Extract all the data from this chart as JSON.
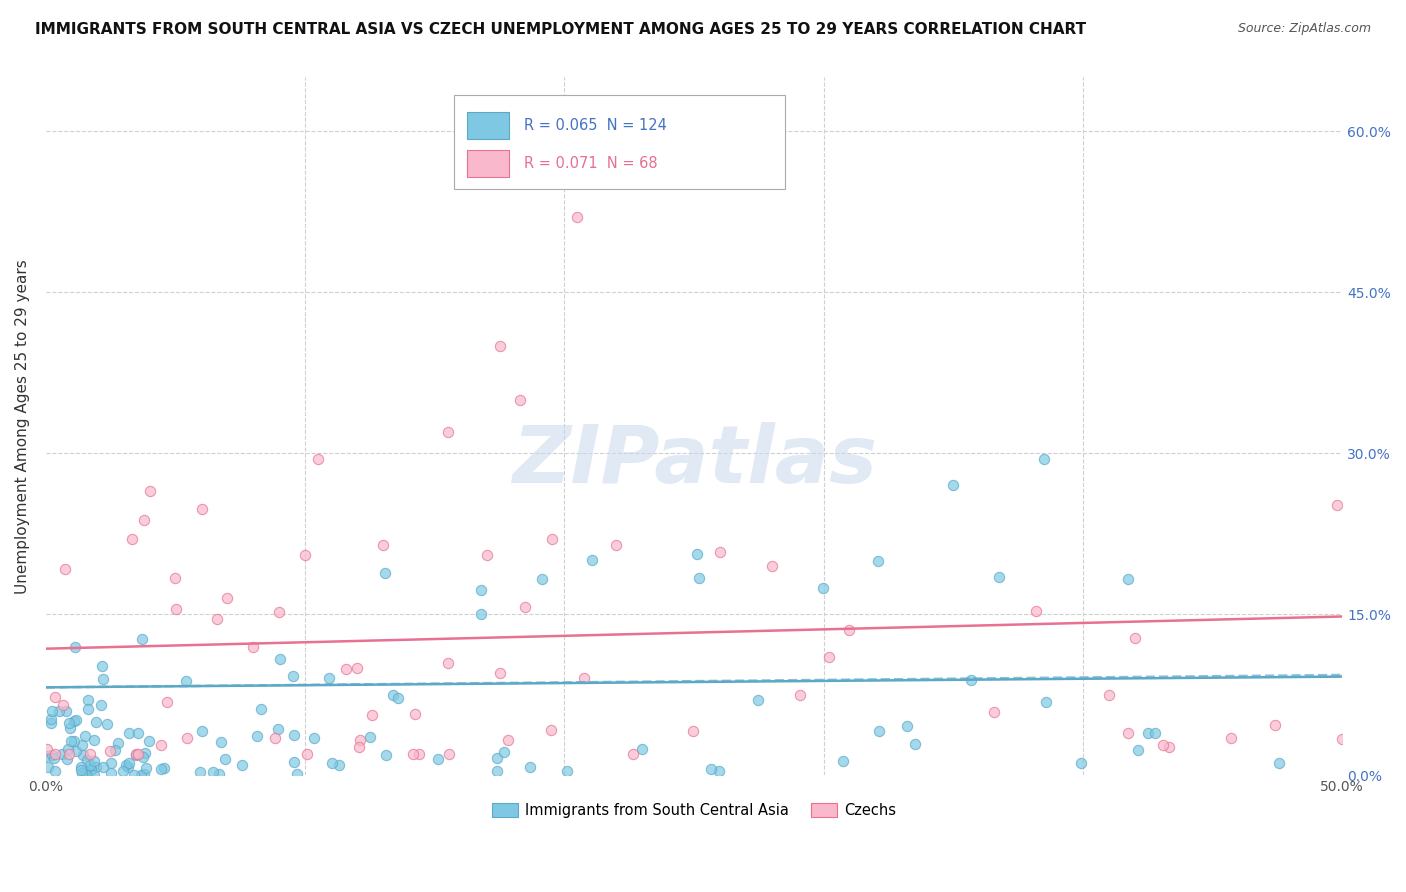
{
  "title": "IMMIGRANTS FROM SOUTH CENTRAL ASIA VS CZECH UNEMPLOYMENT AMONG AGES 25 TO 29 YEARS CORRELATION CHART",
  "source": "Source: ZipAtlas.com",
  "ylabel": "Unemployment Among Ages 25 to 29 years",
  "xlim": [
    0.0,
    0.5
  ],
  "ylim": [
    0.0,
    0.65
  ],
  "xtick_vals": [
    0.0,
    0.1,
    0.2,
    0.3,
    0.4,
    0.5
  ],
  "xticklabels": [
    "0.0%",
    "",
    "",
    "",
    "",
    "50.0%"
  ],
  "ytick_vals": [
    0.0,
    0.15,
    0.3,
    0.45,
    0.6
  ],
  "ytick_right_labels": [
    "0.0%",
    "15.0%",
    "30.0%",
    "45.0%",
    "60.0%"
  ],
  "blue_color": "#7ec8e3",
  "blue_edge_color": "#5ba8c7",
  "pink_color": "#f9b8cb",
  "pink_edge_color": "#e87090",
  "blue_R": 0.065,
  "blue_N": 124,
  "pink_R": 0.071,
  "pink_N": 68,
  "watermark": "ZIPatlas",
  "legend_label_blue": "Immigrants from South Central Asia",
  "legend_label_pink": "Czechs",
  "blue_trend_start_y": 0.082,
  "blue_trend_end_y": 0.092,
  "blue_trend_x": [
    0.0,
    0.5
  ],
  "pink_trend_start_y": 0.118,
  "pink_trend_end_y": 0.148,
  "pink_trend_x": [
    0.0,
    0.5
  ]
}
